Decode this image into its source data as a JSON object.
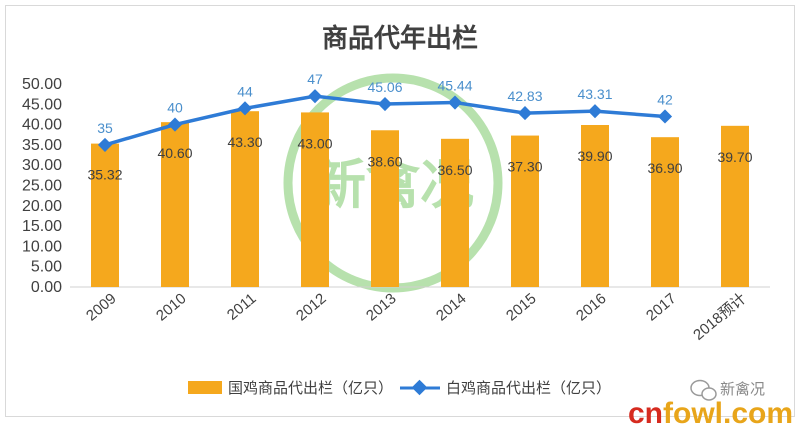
{
  "chart_data": {
    "type": "bar",
    "title": "商品代年出栏",
    "categories": [
      "2009",
      "2010",
      "2011",
      "2012",
      "2013",
      "2014",
      "2015",
      "2016",
      "2017",
      "2018预计"
    ],
    "series": [
      {
        "name": "国鸡商品代出栏（亿只）",
        "type": "bar",
        "color": "#f5a81d",
        "values": [
          35.32,
          40.6,
          43.3,
          43.0,
          38.6,
          36.5,
          37.3,
          39.9,
          36.9,
          39.7
        ],
        "labels": [
          "35.32",
          "40.60",
          "43.30",
          "43.00",
          "38.60",
          "36.50",
          "37.30",
          "39.90",
          "36.90",
          "39.70"
        ]
      },
      {
        "name": "白鸡商品代出栏（亿只）",
        "type": "line",
        "color": "#2e7bd6",
        "values": [
          35,
          40,
          44,
          47,
          45.06,
          45.44,
          42.83,
          43.31,
          42,
          null
        ],
        "labels": [
          "35",
          "40",
          "44",
          "47",
          "45.06",
          "45.44",
          "42.83",
          "43.31",
          "42",
          ""
        ]
      }
    ],
    "y_ticks": [
      "0.00",
      "5.00",
      "10.00",
      "15.00",
      "20.00",
      "25.00",
      "30.00",
      "35.00",
      "40.00",
      "45.00",
      "50.00"
    ],
    "ylim": [
      0,
      50
    ],
    "grid": false,
    "legend_position": "bottom"
  },
  "watermark": {
    "text": "新禽况",
    "color": "#7bc86a"
  },
  "brand": {
    "label": "新禽况",
    "icon": "wechat-icon"
  },
  "site": {
    "prefix": "cn",
    "suffix": "fowl.com",
    "prefix_color": "#d62b1f",
    "suffix_color": "#e8a51a"
  }
}
